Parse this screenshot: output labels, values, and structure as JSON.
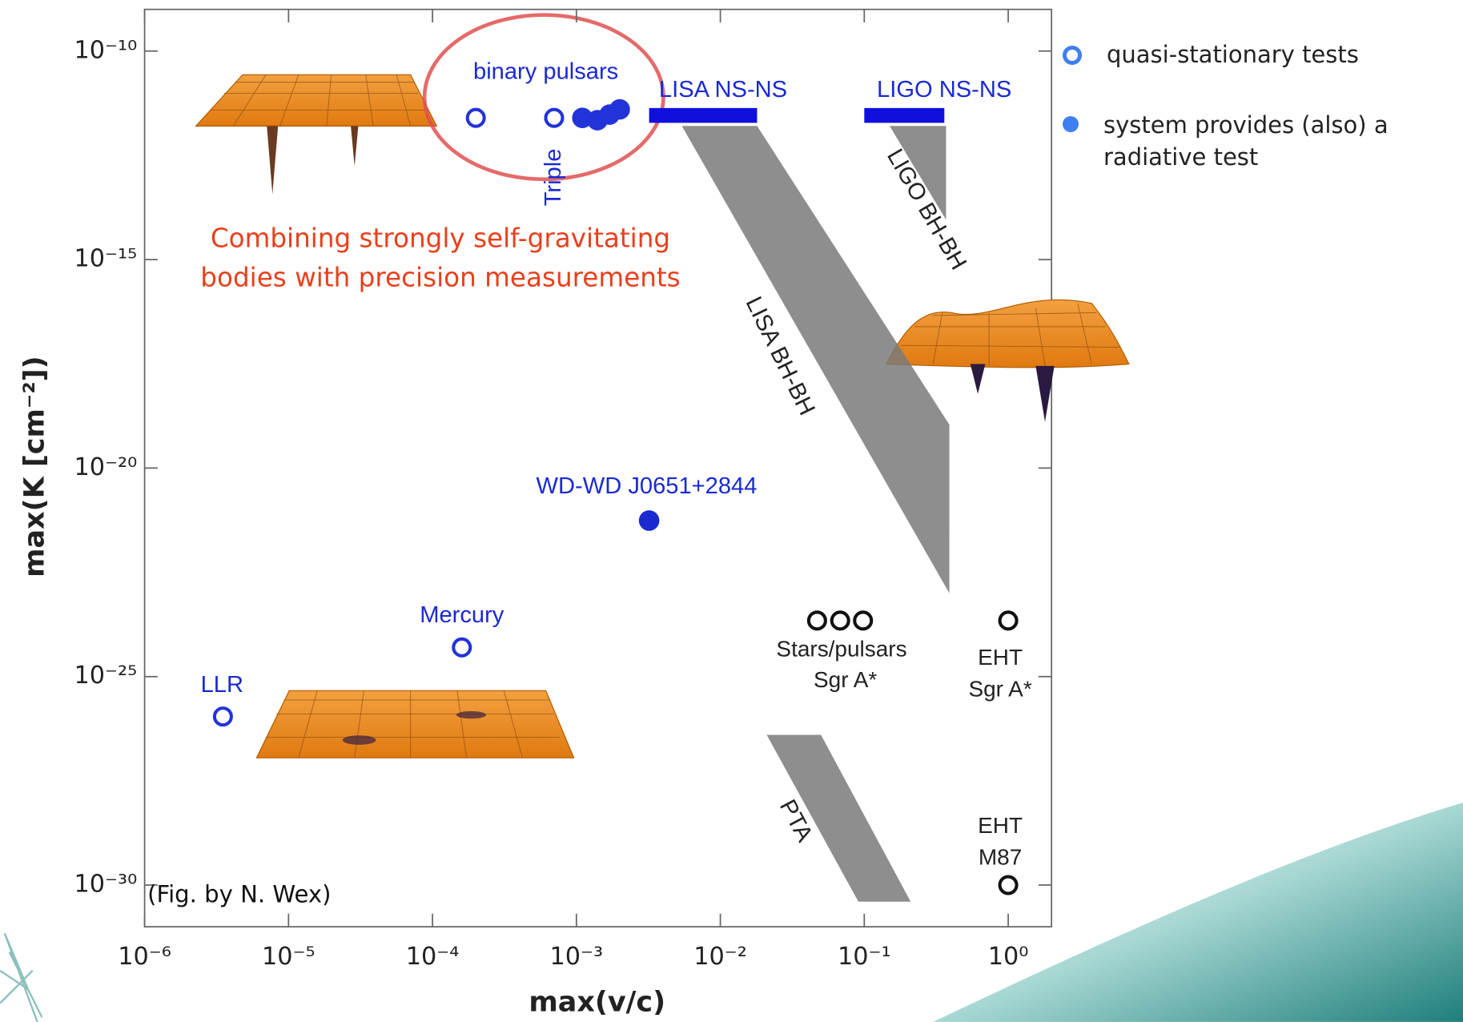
{
  "chart_data": {
    "type": "scatter",
    "xlabel": "max(v/c)",
    "ylabel": "max(K [cm⁻²])",
    "log_x": true,
    "log_y": true,
    "xlim": [
      1e-06,
      2
    ],
    "ylim": [
      1e-31,
      1e-09
    ],
    "xticks": [
      {
        "value": 1e-06,
        "label": "10⁻⁶"
      },
      {
        "value": 1e-05,
        "label": "10⁻⁵"
      },
      {
        "value": 0.0001,
        "label": "10⁻⁴"
      },
      {
        "value": 0.001,
        "label": "10⁻³"
      },
      {
        "value": 0.01,
        "label": "10⁻²"
      },
      {
        "value": 0.1,
        "label": "10⁻¹"
      },
      {
        "value": 1,
        "label": "10⁰"
      }
    ],
    "yticks": [
      {
        "value": 1e-10,
        "label": "10⁻¹⁰"
      },
      {
        "value": 1e-15,
        "label": "10⁻¹⁵"
      },
      {
        "value": 1e-20,
        "label": "10⁻²⁰"
      },
      {
        "value": 1e-25,
        "label": "10⁻²⁵"
      },
      {
        "value": 1e-30,
        "label": "10⁻³⁰"
      }
    ],
    "legend": "upper right",
    "series": [
      {
        "name": "quasi-stationary tests",
        "filled": false,
        "legend_color": "#3f7ff0",
        "x": [
          3.5e-06,
          0.00016,
          0.0002,
          0.0007,
          0.047,
          0.068,
          0.098,
          1,
          1
        ],
        "y": [
          1.1e-26,
          5e-25,
          2.5e-12,
          2.5e-12,
          2.2e-24,
          2.2e-24,
          2.2e-24,
          2.2e-24,
          1e-30
        ],
        "colors": [
          "#2233d8",
          "#2233d8",
          "#2233d8",
          "#2233d8",
          "#111111",
          "#111111",
          "#111111",
          "#111111",
          "#111111"
        ]
      },
      {
        "name": "system provides (also) a radiative test",
        "filled": true,
        "legend_color": "#3f7ff0",
        "x": [
          0.0011,
          0.0014,
          0.0017,
          0.002,
          0.0032
        ],
        "y": [
          2.5e-12,
          2.2e-12,
          3e-12,
          4e-12,
          5.5e-22
        ],
        "colors": [
          "#2233d8",
          "#2233d8",
          "#2233d8",
          "#2233d8",
          "#1a2ad0"
        ]
      }
    ],
    "regions": [
      {
        "name": "LISA NS-NS",
        "color": "#1010dd",
        "x": [
          0.0032,
          0.018,
          0.018,
          0.0032
        ],
        "y": [
          4.3e-12,
          4.3e-12,
          1.9e-12,
          1.9e-12
        ]
      },
      {
        "name": "LIGO NS-NS",
        "color": "#1010dd",
        "x": [
          0.1,
          0.36,
          0.36,
          0.1
        ],
        "y": [
          4.3e-12,
          4.3e-12,
          1.9e-12,
          1.9e-12
        ]
      },
      {
        "name": "LISA BH-BH",
        "color": "#7a7a7a",
        "x": [
          0.0054,
          0.018,
          0.39,
          0.39
        ],
        "y": [
          1.6e-12,
          1.6e-12,
          1.1e-19,
          1e-23
        ]
      },
      {
        "name": "LIGO BH-BH",
        "color": "#7a7a7a",
        "x": [
          0.15,
          0.37,
          0.37
        ],
        "y": [
          1.6e-12,
          1.6e-12,
          9e-15
        ]
      },
      {
        "name": "PTA",
        "color": "#7a7a7a",
        "x": [
          0.021,
          0.05,
          0.21,
          0.091
        ],
        "y": [
          4e-27,
          4e-27,
          4e-31,
          4e-31
        ]
      }
    ],
    "annotations": [
      "binary pulsars",
      "Triple",
      "WD-WD J0651+2844",
      "Mercury",
      "LLR",
      "Stars/pulsars",
      "Sgr A*",
      "EHT",
      "Sgr A*",
      "EHT",
      "M87",
      "Combining strongly self-gravitating",
      "bodies with precision measurements",
      "(Fig. by N. Wex)"
    ]
  }
}
